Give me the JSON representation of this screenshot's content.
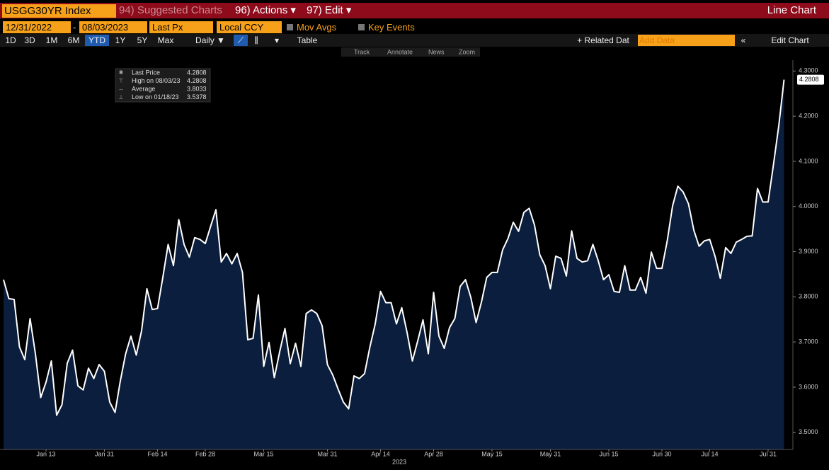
{
  "ui": {
    "ticker": "USGG30YR Index",
    "menus": [
      "94) Suggested Charts",
      "96) Actions ▾",
      "97) Edit ▾"
    ],
    "chart_kind": "Line Chart",
    "start_date": "12/31/2022",
    "date_separator": "-",
    "end_date": "08/03/2023",
    "field": "Last Px",
    "currency": "Local CCY",
    "toggles": [
      "Mov Avgs",
      "Key Events"
    ],
    "periods": [
      "1D",
      "3D",
      "1M",
      "6M",
      "YTD",
      "1Y",
      "5Y",
      "Max"
    ],
    "active_period_index": 4,
    "frequency": "Daily ▼",
    "view": "Table",
    "related": "+ Related Dat",
    "add_data": "Add Data",
    "edit": "Edit Chart",
    "tools": [
      "Track",
      "Annotate",
      "News",
      "Zoom"
    ]
  },
  "chart_data": {
    "type": "area",
    "color": "#ffffff",
    "fill_color": "#0b1e3d",
    "xlabel": "2023",
    "categories": [
      null,
      null,
      null,
      null,
      null,
      null,
      null,
      null,
      "Jan 13",
      null,
      null,
      null,
      null,
      null,
      null,
      null,
      null,
      null,
      null,
      "Jan 31",
      null,
      null,
      null,
      null,
      null,
      null,
      null,
      null,
      null,
      "Feb 14",
      null,
      null,
      null,
      null,
      null,
      null,
      null,
      null,
      "Feb 28",
      null,
      null,
      null,
      null,
      null,
      null,
      null,
      null,
      null,
      null,
      "Mar 15",
      null,
      null,
      null,
      null,
      null,
      null,
      null,
      null,
      null,
      null,
      null,
      "Mar 31",
      null,
      null,
      null,
      null,
      null,
      null,
      null,
      null,
      null,
      "Apr 14",
      null,
      null,
      null,
      null,
      null,
      null,
      null,
      null,
      null,
      "Apr 28",
      null,
      null,
      null,
      null,
      null,
      null,
      null,
      null,
      null,
      null,
      "May 15",
      null,
      null,
      null,
      null,
      null,
      null,
      null,
      null,
      null,
      null,
      "May 31",
      null,
      null,
      null,
      null,
      null,
      null,
      null,
      null,
      null,
      null,
      "Jun 15",
      null,
      null,
      null,
      null,
      null,
      null,
      null,
      null,
      null,
      "Jun 30",
      null,
      null,
      null,
      null,
      null,
      null,
      null,
      null,
      "Jul 14",
      null,
      null,
      null,
      null,
      null,
      null,
      null,
      null,
      null,
      null,
      "Jul 31",
      null,
      null,
      null
    ],
    "values": [
      3.838,
      3.796,
      3.794,
      3.689,
      3.661,
      3.752,
      3.674,
      3.577,
      3.611,
      3.658,
      3.5378,
      3.561,
      3.653,
      3.682,
      3.603,
      3.594,
      3.642,
      3.619,
      3.65,
      3.635,
      3.567,
      3.544,
      3.614,
      3.674,
      3.713,
      3.671,
      3.725,
      3.818,
      3.772,
      3.774,
      3.843,
      3.916,
      3.869,
      3.971,
      3.916,
      3.888,
      3.931,
      3.927,
      3.918,
      3.956,
      3.993,
      3.877,
      3.896,
      3.873,
      3.896,
      3.854,
      3.705,
      3.708,
      3.804,
      3.646,
      3.699,
      3.621,
      3.678,
      3.73,
      3.652,
      3.697,
      3.646,
      3.763,
      3.771,
      3.763,
      3.736,
      3.65,
      3.627,
      3.596,
      3.567,
      3.552,
      3.625,
      3.619,
      3.63,
      3.689,
      3.74,
      3.812,
      3.787,
      3.787,
      3.74,
      3.776,
      3.721,
      3.658,
      3.702,
      3.749,
      3.674,
      3.81,
      3.713,
      3.686,
      3.732,
      3.752,
      3.823,
      3.838,
      3.799,
      3.743,
      3.788,
      3.843,
      3.854,
      3.854,
      3.904,
      3.929,
      3.965,
      3.945,
      3.987,
      3.996,
      3.959,
      3.893,
      3.869,
      3.818,
      3.89,
      3.885,
      3.846,
      3.946,
      3.885,
      3.877,
      3.88,
      3.916,
      3.88,
      3.838,
      3.849,
      3.812,
      3.81,
      3.869,
      3.815,
      3.815,
      3.843,
      3.808,
      3.899,
      3.863,
      3.863,
      3.924,
      4.001,
      4.045,
      4.032,
      4.006,
      3.948,
      3.912,
      3.924,
      3.927,
      3.89,
      3.841,
      3.909,
      3.896,
      3.921,
      3.927,
      3.934,
      3.935,
      4.04,
      4.01,
      4.01,
      4.092,
      4.178,
      4.2808
    ],
    "ylim": [
      3.462,
      4.324
    ],
    "yticks": [
      {
        "value": 3.5,
        "label": "3.5000"
      },
      {
        "value": 3.6,
        "label": "3.6000"
      },
      {
        "value": 3.7,
        "label": "3.7000"
      },
      {
        "value": 3.8,
        "label": "3.8000"
      },
      {
        "value": 3.9,
        "label": "3.9000"
      },
      {
        "value": 4.0,
        "label": "4.0000"
      },
      {
        "value": 4.1,
        "label": "4.1000"
      },
      {
        "value": 4.2,
        "label": "4.2000"
      },
      {
        "value": 4.3,
        "label": "4.3000"
      }
    ],
    "grid": false,
    "stats": [
      {
        "label": "Last Price",
        "value": 4.2808
      },
      {
        "label": "High on 08/03/23",
        "value": 4.2808
      },
      {
        "label": "Average",
        "value": 3.8033
      },
      {
        "label": "Low on 01/18/23",
        "value": 3.5378
      }
    ]
  }
}
